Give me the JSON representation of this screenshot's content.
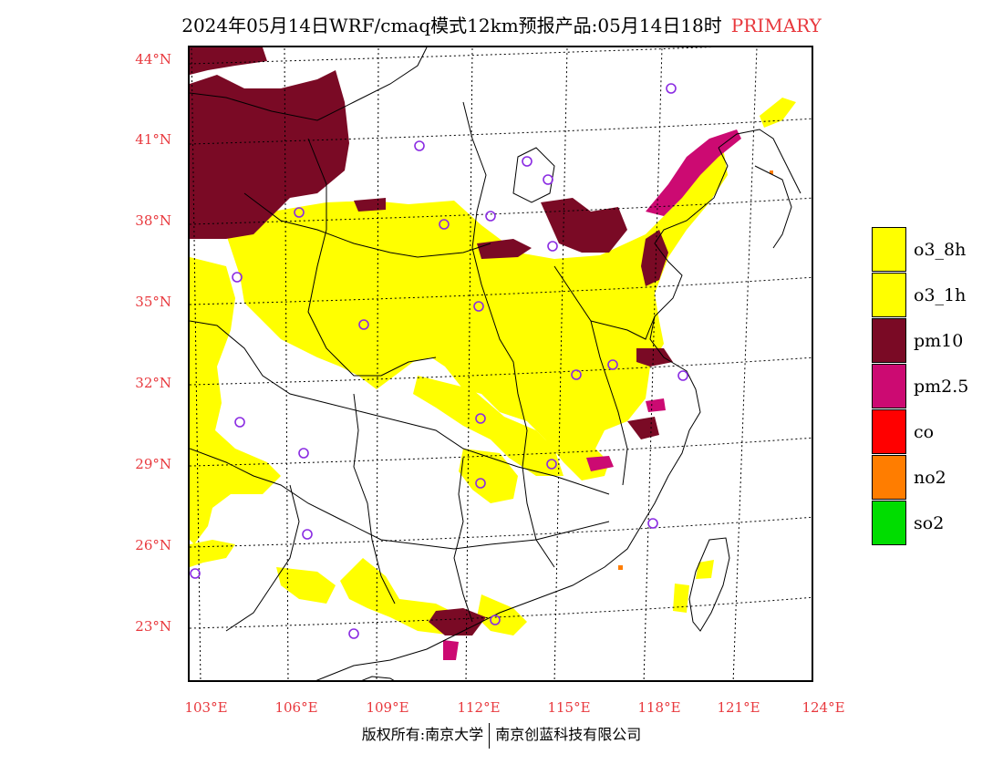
{
  "title": {
    "main": "2024年05月14日WRF/cmaq模式12km预报产品:05月14日18时",
    "tag": "PRIMARY",
    "tag_color": "#e8383d"
  },
  "map": {
    "lat_labels": [
      "44°N",
      "41°N",
      "38°N",
      "35°N",
      "32°N",
      "29°N",
      "26°N",
      "23°N"
    ],
    "lon_labels": [
      "103°E",
      "106°E",
      "109°E",
      "112°E",
      "115°E",
      "118°E",
      "121°E",
      "124°E"
    ],
    "category_colors": {
      "o3_8h": "#ffff00",
      "pm10": "#7a0a25",
      "pm2.5": "#cc0a72",
      "no2": "#ff7d00",
      "station_marker": "#8a2be2"
    }
  },
  "legend": [
    {
      "label": "o3_8h",
      "color": "#ffff00"
    },
    {
      "label": "o3_1h",
      "color": "#ffff00"
    },
    {
      "label": "pm10",
      "color": "#7a0a25"
    },
    {
      "label": "pm2.5",
      "color": "#cc0a72"
    },
    {
      "label": "co",
      "color": "#ff0000"
    },
    {
      "label": "no2",
      "color": "#ff7d00"
    },
    {
      "label": "so2",
      "color": "#00dd00"
    }
  ],
  "footer": {
    "left": "版权所有:南京大学",
    "right": "南京创蓝科技有限公司"
  }
}
